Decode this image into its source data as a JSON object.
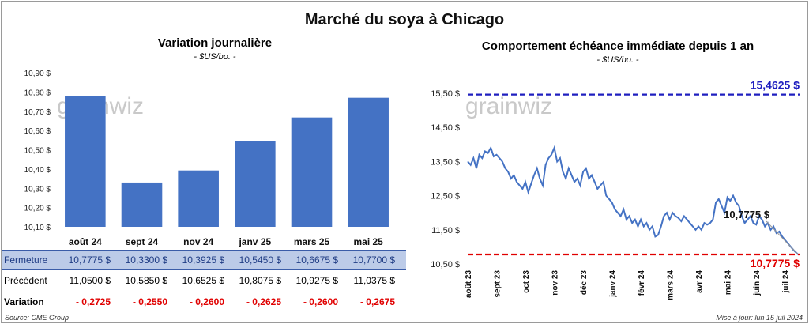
{
  "main_title": "Marché du soya à Chicago",
  "left": {
    "title": "Variation journalière",
    "subtitle": "- $US/bo. -",
    "watermark": "grainwiz"
  },
  "right": {
    "title": "Comportement échéance immédiate depuis 1 an",
    "subtitle": "- $US/bo. -",
    "watermark": "grainwiz"
  },
  "table": {
    "rows": [
      {
        "label": "Fermeture",
        "values": [
          "10,7775 $",
          "10,3300 $",
          "10,3925 $",
          "10,5450 $",
          "10,6675 $",
          "10,7700 $"
        ]
      },
      {
        "label": "Précédent",
        "values": [
          "11,0500 $",
          "10,5850 $",
          "10,6525 $",
          "10,8075 $",
          "10,9275 $",
          "11,0375 $"
        ]
      },
      {
        "label": "Variation",
        "values": [
          "- 0,2725",
          "- 0,2550",
          "- 0,2600",
          "- 0,2625",
          "- 0,2600",
          "- 0,2675"
        ]
      }
    ]
  },
  "footer": {
    "source": "Source: CME Group",
    "update": "Mise à jour: lun 15 juil 2024"
  },
  "colors": {
    "bar": "#4472c4",
    "line": "#4472c4",
    "high": "#1f1fbf",
    "low": "#e00000"
  },
  "chart_data": [
    {
      "type": "bar",
      "categories": [
        "août 24",
        "sept 24",
        "nov 24",
        "janv 25",
        "mars 25",
        "mai 25"
      ],
      "values": [
        10.7775,
        10.33,
        10.3925,
        10.545,
        10.6675,
        10.77
      ],
      "ylim": [
        10.1,
        10.9
      ],
      "yticks": [
        10.1,
        10.2,
        10.3,
        10.4,
        10.5,
        10.6,
        10.7,
        10.8,
        10.9
      ],
      "ytick_labels": [
        "10,10 $",
        "10,20 $",
        "10,30 $",
        "10,40 $",
        "10,50 $",
        "10,60 $",
        "10,70 $",
        "10,80 $",
        "10,90 $"
      ],
      "grid": false
    },
    {
      "type": "line",
      "ylim": [
        10.5,
        15.5
      ],
      "yticks": [
        10.5,
        11.5,
        12.5,
        13.5,
        14.5,
        15.5
      ],
      "ytick_labels": [
        "10,50 $",
        "11,50 $",
        "12,50 $",
        "13,50 $",
        "14,50 $",
        "15,50 $"
      ],
      "x_ticks": [
        "août 23",
        "sept 23",
        "oct 23",
        "nov 23",
        "déc 23",
        "janv 24",
        "févr 24",
        "mars 24",
        "avr 24",
        "mai 24",
        "juin 24",
        "juil 24"
      ],
      "x_tick_months": [
        0,
        1,
        2,
        3,
        4,
        5,
        6,
        7,
        8,
        9,
        10,
        11
      ],
      "series": [
        {
          "x_months": [
            0,
            0.1,
            0.2,
            0.3,
            0.4,
            0.5,
            0.6,
            0.7,
            0.8,
            0.9,
            1.0,
            1.1,
            1.2,
            1.3,
            1.4,
            1.5,
            1.6,
            1.7,
            1.8,
            1.9,
            2.0,
            2.1,
            2.2,
            2.3,
            2.4,
            2.5,
            2.6,
            2.7,
            2.8,
            2.9,
            3.0,
            3.1,
            3.2,
            3.3,
            3.4,
            3.5,
            3.6,
            3.7,
            3.8,
            3.9,
            4.0,
            4.1,
            4.2,
            4.3,
            4.4,
            4.5,
            4.6,
            4.7,
            4.8,
            4.9,
            5.0,
            5.1,
            5.2,
            5.3,
            5.4,
            5.5,
            5.6,
            5.7,
            5.8,
            5.9,
            6.0,
            6.1,
            6.2,
            6.3,
            6.4,
            6.5,
            6.6,
            6.7,
            6.8,
            6.9,
            7.0,
            7.1,
            7.2,
            7.3,
            7.4,
            7.5,
            7.6,
            7.7,
            7.8,
            7.9,
            8.0,
            8.1,
            8.2,
            8.3,
            8.4,
            8.5,
            8.6,
            8.7,
            8.8,
            8.9,
            9.0,
            9.1,
            9.2,
            9.3,
            9.4,
            9.5,
            9.6,
            9.7,
            9.8,
            9.9,
            10.0,
            10.1,
            10.2,
            10.3,
            10.4,
            10.5,
            10.6,
            10.7,
            10.8,
            10.9,
            11.0,
            11.1,
            11.2,
            11.3,
            11.45
          ],
          "values": [
            13.5,
            13.4,
            13.6,
            13.3,
            13.7,
            13.6,
            13.8,
            13.75,
            13.9,
            13.65,
            13.7,
            13.6,
            13.5,
            13.3,
            13.2,
            13.0,
            13.1,
            12.9,
            12.8,
            12.7,
            12.9,
            12.6,
            12.85,
            13.1,
            13.3,
            13.0,
            12.8,
            13.4,
            13.6,
            13.7,
            13.9,
            13.5,
            13.6,
            13.2,
            13.0,
            13.3,
            13.1,
            12.9,
            13.0,
            12.8,
            13.2,
            13.3,
            13.0,
            13.1,
            12.9,
            12.7,
            12.8,
            12.9,
            12.5,
            12.4,
            12.3,
            12.1,
            12.0,
            11.9,
            12.1,
            11.8,
            11.9,
            11.7,
            11.8,
            11.6,
            11.8,
            11.6,
            11.7,
            11.5,
            11.6,
            11.3,
            11.35,
            11.6,
            11.9,
            12.0,
            11.8,
            12.0,
            11.9,
            11.85,
            11.75,
            11.9,
            11.8,
            11.7,
            11.6,
            11.5,
            11.6,
            11.5,
            11.7,
            11.65,
            11.7,
            11.8,
            12.3,
            12.4,
            12.2,
            12.0,
            12.45,
            12.35,
            12.5,
            12.3,
            12.2,
            11.9,
            11.7,
            11.8,
            11.9,
            11.7,
            11.65,
            11.9,
            11.8,
            11.6,
            11.7,
            11.5,
            11.6,
            11.4,
            11.45,
            11.3,
            11.2,
            11.1,
            11.0,
            10.9,
            10.7775
          ]
        }
      ],
      "reference_lines": [
        {
          "label": "15,4625 $",
          "value": 15.4625
        },
        {
          "label": "10,7775 $",
          "value": 10.7775
        }
      ],
      "annotations": [
        {
          "text": "10,7775 $"
        }
      ]
    }
  ]
}
